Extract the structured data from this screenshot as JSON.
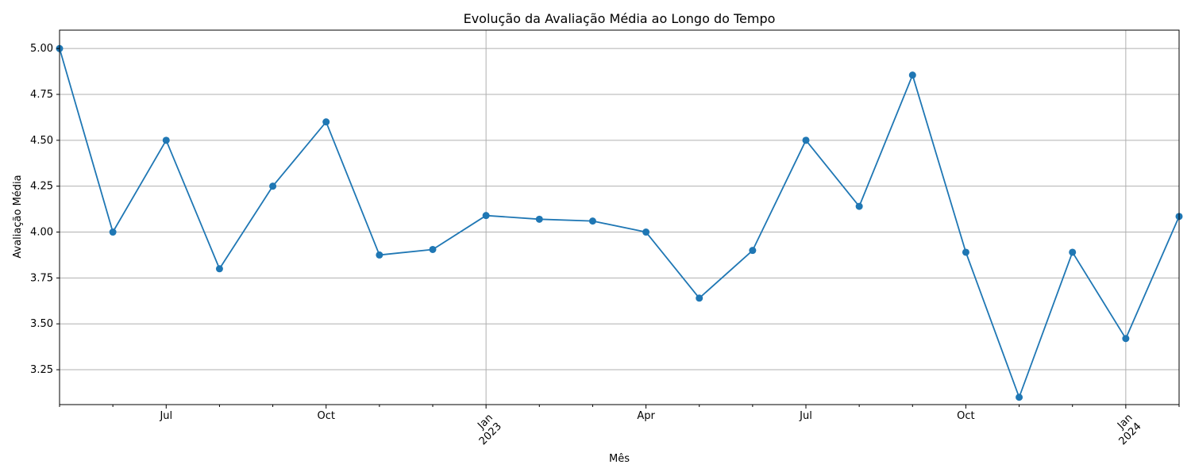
{
  "colors": {
    "line": "#1f77b4",
    "grid": "#b0b0b0",
    "axis": "#000000",
    "background": "#ffffff"
  },
  "chart_data": {
    "type": "line",
    "title": "Evolução da Avaliação Média ao Longo do Tempo",
    "xlabel": "Mês",
    "ylabel": "Avaliação Média",
    "grid": true,
    "marker": "circle",
    "xlim": [
      "2022-05",
      "2024-02"
    ],
    "ylim": [
      3.06,
      5.1
    ],
    "y_ticks": [
      3.25,
      3.5,
      3.75,
      4.0,
      4.25,
      4.5,
      4.75,
      5.0
    ],
    "y_tick_labels": [
      "3.25",
      "3.50",
      "3.75",
      "4.00",
      "4.25",
      "4.50",
      "4.75",
      "5.00"
    ],
    "x_major_ticks": [
      {
        "month": "2022-07",
        "label": "Jul",
        "sublabel": "",
        "rotated": false
      },
      {
        "month": "2022-10",
        "label": "Oct",
        "sublabel": "",
        "rotated": false
      },
      {
        "month": "2023-01",
        "label": "Jan",
        "sublabel": "2023",
        "rotated": true
      },
      {
        "month": "2023-04",
        "label": "Apr",
        "sublabel": "",
        "rotated": false
      },
      {
        "month": "2023-07",
        "label": "Jul",
        "sublabel": "",
        "rotated": false
      },
      {
        "month": "2023-10",
        "label": "Oct",
        "sublabel": "",
        "rotated": false
      },
      {
        "month": "2024-01",
        "label": "Jan",
        "sublabel": "2024",
        "rotated": true
      }
    ],
    "x_gridlines": [
      "2023-01",
      "2024-01"
    ],
    "x_minor_ticks": [
      "2022-05",
      "2022-06",
      "2022-08",
      "2022-09",
      "2022-11",
      "2022-12",
      "2023-02",
      "2023-03",
      "2023-05",
      "2023-06",
      "2023-08",
      "2023-09",
      "2023-11",
      "2023-12",
      "2024-02"
    ],
    "x": [
      "2022-05",
      "2022-06",
      "2022-07",
      "2022-08",
      "2022-09",
      "2022-10",
      "2022-11",
      "2022-12",
      "2023-01",
      "2023-02",
      "2023-03",
      "2023-04",
      "2023-05",
      "2023-06",
      "2023-07",
      "2023-08",
      "2023-09",
      "2023-10",
      "2023-11",
      "2023-12",
      "2024-01",
      "2024-02"
    ],
    "y": [
      5.0,
      4.0,
      4.5,
      3.8,
      4.25,
      4.6,
      3.875,
      3.905,
      4.09,
      4.07,
      4.06,
      4.0,
      3.64,
      3.9,
      4.5,
      4.14,
      4.855,
      3.89,
      3.1,
      3.89,
      3.42,
      4.085
    ]
  }
}
